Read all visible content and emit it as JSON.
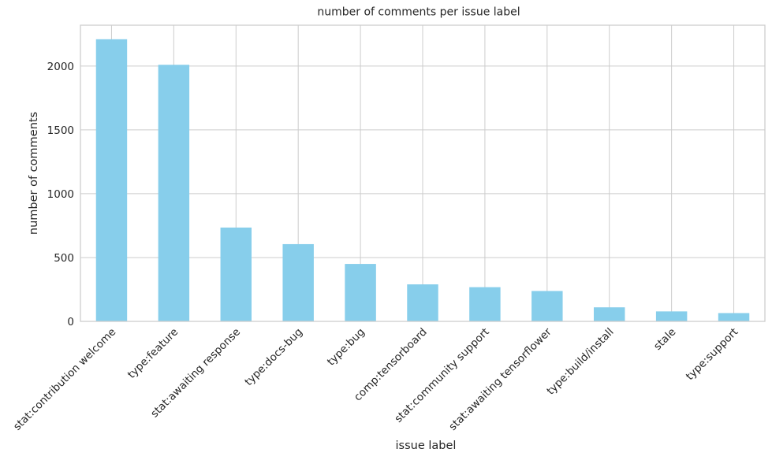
{
  "chart_data": {
    "type": "bar",
    "title": "number of comments per issue label",
    "xlabel": "issue label",
    "ylabel": "number of comments",
    "categories": [
      "stat:contribution welcome",
      "type:feature",
      "stat:awaiting response",
      "type:docs-bug",
      "type:bug",
      "comp:tensorboard",
      "stat:community support",
      "stat:awaiting tensorflower",
      "type:build/install",
      "stale",
      "type:support"
    ],
    "values": [
      2210,
      2010,
      735,
      605,
      450,
      290,
      268,
      238,
      110,
      78,
      65
    ],
    "ylim": [
      0,
      2320
    ],
    "yticks": [
      0,
      500,
      1000,
      1500,
      2000
    ],
    "grid": true,
    "bar_color": "#87ceeb",
    "grid_color": "#cccccc",
    "frame_color": "#cccccc"
  }
}
